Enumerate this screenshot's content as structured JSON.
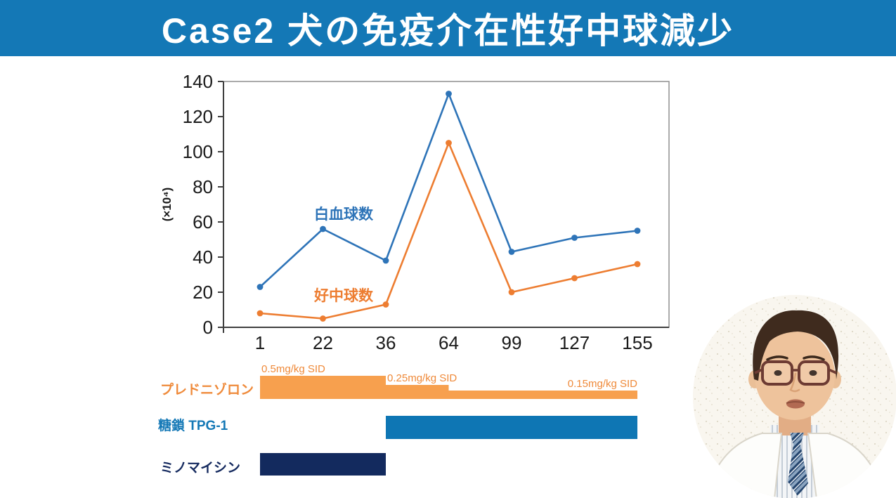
{
  "header": {
    "title": "Case2 犬の免疫介在性好中球減少",
    "bg_color": "#1478b6",
    "text_color": "#ffffff"
  },
  "chart_data": {
    "type": "line",
    "title": "",
    "x": [
      1,
      22,
      36,
      64,
      99,
      127,
      155
    ],
    "xlabel": "",
    "ylabel": "(×10⁴)",
    "ylim": [
      0,
      140
    ],
    "yticks": [
      0,
      20,
      40,
      60,
      80,
      100,
      120,
      140
    ],
    "grid": false,
    "legend_position": "inline-labels",
    "series": [
      {
        "name": "白血球数",
        "color": "#2e74b8",
        "values": [
          23,
          56,
          38,
          133,
          43,
          51,
          55
        ]
      },
      {
        "name": "好中球数",
        "color": "#ed7d31",
        "values": [
          8,
          5,
          13,
          105,
          20,
          28,
          36
        ]
      }
    ]
  },
  "timeline": {
    "dose_label_color": "#ef8a3a",
    "rows": [
      {
        "name": "プレドニゾロン",
        "label_color": "#ef8a3a",
        "bar_color": "#f7a04e",
        "segments": [
          {
            "from_day": 1,
            "to_day": 36,
            "dose": "0.5mg/kg SID",
            "height": 33,
            "label_align": "left"
          },
          {
            "from_day": 36,
            "to_day": 64,
            "dose": "0.25mg/kg SID",
            "height": 20,
            "label_align": "left"
          },
          {
            "from_day": 64,
            "to_day": 155,
            "dose": "0.15mg/kg SID",
            "height": 12,
            "label_align": "right"
          }
        ]
      },
      {
        "name": "糖鎖 TPG-1",
        "label_color": "#1478b6",
        "bar_color": "#0e76b4",
        "segments": [
          {
            "from_day": 36,
            "to_day": 155,
            "dose": "",
            "height": 33
          }
        ]
      },
      {
        "name": "ミノマイシン",
        "label_color": "#14295e",
        "bar_color": "#132a5e",
        "segments": [
          {
            "from_day": 1,
            "to_day": 36,
            "dose": "",
            "height": 32
          }
        ]
      }
    ]
  }
}
